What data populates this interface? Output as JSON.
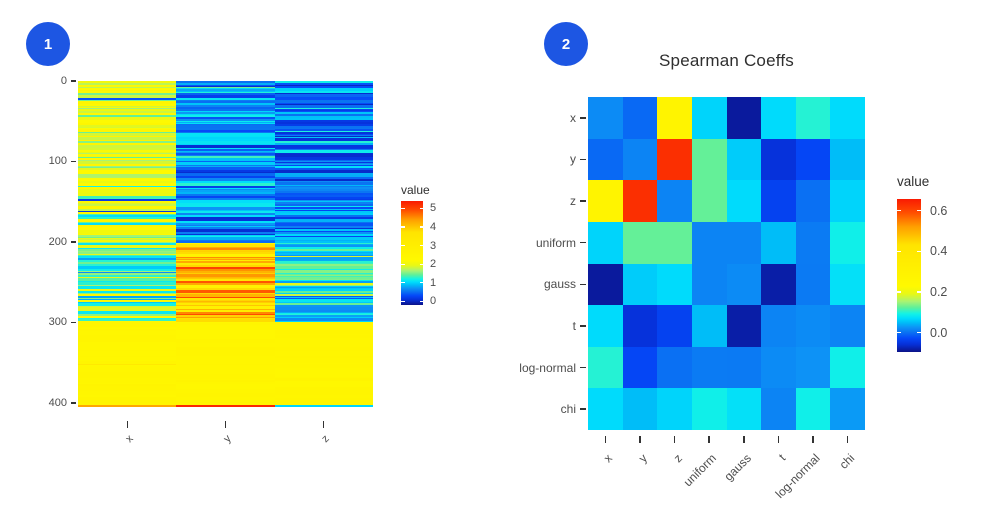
{
  "colors": {
    "background": "#ffffff",
    "badge": "#1d56e3",
    "axis_text": "#4d4d4d",
    "tick_mark": "#333333",
    "title_text": "#2f2f2f"
  },
  "panels": [
    {
      "badge_label": "1"
    },
    {
      "badge_label": "2",
      "title": "Spearman Coeffs"
    }
  ],
  "chart_data": [
    {
      "type": "heatmap",
      "panel": 1,
      "title": "",
      "x_tick_labels": [
        "x",
        "y",
        "z"
      ],
      "y_tick_labels": [
        "0",
        "100",
        "200",
        "300",
        "400"
      ],
      "y_tick_values": [
        0,
        100,
        200,
        300,
        400
      ],
      "n_rows": 405,
      "legend": {
        "title": "value",
        "tick_labels": [
          "5",
          "4",
          "3",
          "2",
          "1",
          "0"
        ],
        "tick_values": [
          5,
          4,
          3,
          2,
          1,
          0
        ],
        "value_range": [
          -0.2,
          5.4
        ]
      },
      "stripes": {
        "seed": 7,
        "description": "row-striped random heatmap; segments give value bands [min,max,probability] per column",
        "segments": [
          {
            "rows": [
              0,
              201
            ],
            "max_run": 3,
            "columns": {
              "x": [
                [
                  2.0,
                  2.6,
                  0.55
                ],
                [
                  1.45,
                  2.0,
                  0.3
                ],
                [
                  0.9,
                  1.45,
                  0.1
                ],
                [
                  0.1,
                  0.5,
                  0.05
                ]
              ],
              "y": [
                [
                  0.25,
                  0.75,
                  0.45
                ],
                [
                  0.75,
                  1.15,
                  0.35
                ],
                [
                  0.05,
                  0.25,
                  0.12
                ],
                [
                  1.15,
                  1.5,
                  0.08
                ]
              ],
              "z": [
                [
                  0.1,
                  0.55,
                  0.5
                ],
                [
                  0.55,
                  0.95,
                  0.3
                ],
                [
                  0.0,
                  0.1,
                  0.1
                ],
                [
                  0.95,
                  1.3,
                  0.1
                ]
              ]
            }
          },
          {
            "rows": [
              201,
              300
            ],
            "max_run": 3,
            "columns": {
              "x": [
                [
                  0.95,
                  1.5,
                  0.5
                ],
                [
                  1.5,
                  2.1,
                  0.3
                ],
                [
                  0.55,
                  0.95,
                  0.15
                ],
                [
                  2.1,
                  2.45,
                  0.05
                ]
              ],
              "y": [
                [
                  3.7,
                  4.5,
                  0.6
                ],
                [
                  4.5,
                  5.2,
                  0.15
                ],
                [
                  3.0,
                  3.7,
                  0.1
                ],
                [
                  2.4,
                  2.9,
                  0.15
                ]
              ],
              "z": [
                [
                  1.0,
                  1.6,
                  0.55
                ],
                [
                  0.65,
                  1.0,
                  0.3
                ],
                [
                  1.6,
                  1.95,
                  0.12
                ],
                [
                  0.3,
                  0.6,
                  0.03
                ]
              ]
            }
          },
          {
            "rows": [
              300,
              402
            ],
            "max_run": 6,
            "columns": {
              "x": [
                [
                  2.35,
                  2.55,
                  0.96
                ],
                [
                  3.2,
                  3.7,
                  0.04
                ]
              ],
              "y": [
                [
                  2.35,
                  2.55,
                  0.98
                ],
                [
                  2.7,
                  3.0,
                  0.02
                ]
              ],
              "z": [
                [
                  2.35,
                  2.55,
                  1.0
                ]
              ]
            }
          },
          {
            "rows": [
              402,
              405
            ],
            "max_run": 3,
            "columns": {
              "x": [
                [
                  4.3,
                  4.3,
                  1.0
                ]
              ],
              "y": [
                [
                  5.25,
                  5.25,
                  1.0
                ]
              ],
              "z": [
                [
                  1.0,
                  1.0,
                  1.0
                ]
              ]
            }
          }
        ]
      },
      "colormap_stops": [
        [
          0.0,
          "#0b1287"
        ],
        [
          0.05,
          "#0630d8"
        ],
        [
          0.09,
          "#0548f8"
        ],
        [
          0.13,
          "#0a74f2"
        ],
        [
          0.16,
          "#0d92f6"
        ],
        [
          0.19,
          "#00baf8"
        ],
        [
          0.22,
          "#00dcfc"
        ],
        [
          0.25,
          "#13f2e6"
        ],
        [
          0.29,
          "#5ff09a"
        ],
        [
          0.33,
          "#a8f374"
        ],
        [
          0.38,
          "#e8f816"
        ],
        [
          0.43,
          "#fff900"
        ],
        [
          0.7,
          "#ffe400"
        ],
        [
          0.82,
          "#ff9e00"
        ],
        [
          0.91,
          "#ff4f00"
        ],
        [
          1.0,
          "#f91a02"
        ]
      ]
    },
    {
      "type": "heatmap",
      "panel": 2,
      "title": "Spearman Coeffs",
      "categories": [
        "x",
        "y",
        "z",
        "uniform",
        "gauss",
        "t",
        "log-normal",
        "chi"
      ],
      "legend": {
        "title": "value",
        "tick_labels": [
          "0.6",
          "0.4",
          "0.2",
          "0.0"
        ],
        "tick_values": [
          0.6,
          0.4,
          0.2,
          0.0
        ],
        "value_range": [
          -0.095,
          0.657
        ]
      },
      "matrix": [
        [
          0.02,
          -0.005,
          0.28,
          0.065,
          -0.085,
          0.07,
          0.1,
          0.07
        ],
        [
          -0.005,
          0.015,
          0.63,
          0.125,
          0.06,
          -0.055,
          -0.03,
          0.05
        ],
        [
          0.28,
          0.63,
          0.015,
          0.125,
          0.07,
          -0.035,
          0.0,
          0.065
        ],
        [
          0.065,
          0.125,
          0.125,
          0.015,
          0.015,
          0.05,
          0.008,
          0.09
        ],
        [
          -0.085,
          0.06,
          0.07,
          0.015,
          0.02,
          -0.08,
          0.007,
          0.075
        ],
        [
          0.07,
          -0.055,
          -0.035,
          0.05,
          -0.08,
          0.015,
          0.02,
          0.015
        ],
        [
          0.1,
          -0.03,
          0.0,
          0.008,
          0.007,
          0.02,
          0.025,
          0.09
        ],
        [
          0.07,
          0.05,
          0.065,
          0.09,
          0.075,
          0.015,
          0.09,
          0.03
        ]
      ]
    }
  ]
}
